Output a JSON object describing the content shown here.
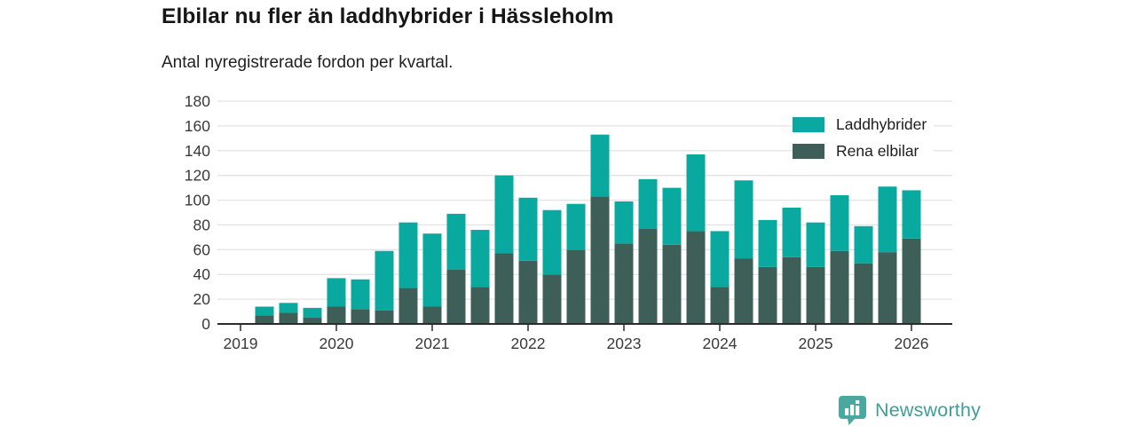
{
  "header": {
    "title": "Elbilar nu fler än laddhybrider i Hässleholm",
    "subtitle": "Antal nyregistrerade fordon per kvartal."
  },
  "legend": {
    "items": [
      {
        "label": "Laddhybrider",
        "color": "#0aa9a0"
      },
      {
        "label": "Rena elbilar",
        "color": "#3e5f58"
      }
    ]
  },
  "branding": {
    "name": "Newsworthy",
    "color": "#3f9e96",
    "badge_color": "#4aa8a1",
    "logo_icon": "bar-chart-pin-badge-icon"
  },
  "chart_data": {
    "type": "bar",
    "stacked": true,
    "title": "Elbilar nu fler än laddhybrider i Hässleholm",
    "subtitle": "Antal nyregistrerade fordon per kvartal.",
    "xlabel": "",
    "ylabel": "",
    "ylim": [
      0,
      180
    ],
    "y_ticks": [
      0,
      20,
      40,
      60,
      80,
      100,
      120,
      140,
      160,
      180
    ],
    "grid": true,
    "legend_position": "top-right",
    "categories": [
      "2019 Q1",
      "2019 Q2",
      "2019 Q3",
      "2019 Q4",
      "2020 Q1",
      "2020 Q2",
      "2020 Q3",
      "2020 Q4",
      "2021 Q1",
      "2021 Q2",
      "2021 Q3",
      "2021 Q4",
      "2022 Q1",
      "2022 Q2",
      "2022 Q3",
      "2022 Q4",
      "2023 Q1",
      "2023 Q2",
      "2023 Q3",
      "2023 Q4",
      "2024 Q1",
      "2024 Q2",
      "2024 Q3",
      "2024 Q4",
      "2025 Q1",
      "2025 Q2",
      "2025 Q3",
      "2025 Q4",
      "2026 Q1"
    ],
    "x_tick_labels": [
      "2019",
      "2020",
      "2021",
      "2022",
      "2023",
      "2024",
      "2025",
      "2026"
    ],
    "series": [
      {
        "name": "Rena elbilar",
        "color": "#3e5f58",
        "values": [
          0,
          7,
          9,
          5,
          14,
          12,
          11,
          29,
          14,
          44,
          30,
          57,
          51,
          40,
          60,
          103,
          65,
          77,
          64,
          75,
          30,
          53,
          46,
          54,
          46,
          59,
          49,
          58,
          69
        ]
      },
      {
        "name": "Laddhybrider",
        "color": "#0aa9a0",
        "values": [
          0,
          7,
          8,
          8,
          23,
          24,
          48,
          53,
          59,
          45,
          46,
          63,
          51,
          52,
          37,
          50,
          34,
          40,
          46,
          62,
          45,
          63,
          38,
          40,
          36,
          45,
          30,
          53,
          39
        ]
      }
    ],
    "stack_order_bottom_to_top": [
      "Rena elbilar",
      "Laddhybrider"
    ]
  }
}
